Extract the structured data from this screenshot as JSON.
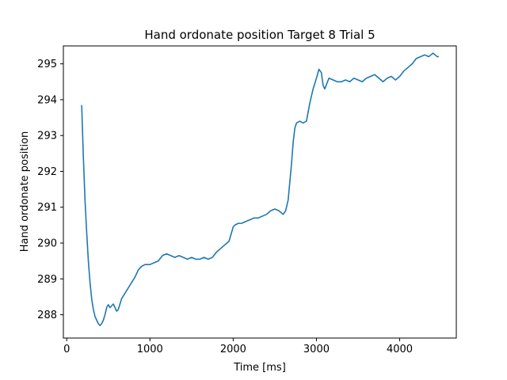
{
  "chart_data": {
    "type": "line",
    "title": "Hand ordonate position Target 8 Trial 5",
    "xlabel": "Time [ms]",
    "ylabel": "Hand ordonate position",
    "xlim": [
      -40,
      4680
    ],
    "ylim": [
      287.35,
      295.5
    ],
    "xticks": [
      0,
      1000,
      2000,
      3000,
      4000
    ],
    "yticks": [
      288,
      289,
      290,
      291,
      292,
      293,
      294,
      295
    ],
    "xtick_labels": [
      "0",
      "1000",
      "2000",
      "3000",
      "4000"
    ],
    "ytick_labels": [
      "288",
      "289",
      "290",
      "291",
      "292",
      "293",
      "294",
      "295"
    ],
    "grid": false,
    "legend": "none",
    "series": [
      {
        "color": "#1f77b4",
        "x": [
          180,
          200,
          220,
          240,
          260,
          280,
          300,
          320,
          340,
          360,
          380,
          400,
          420,
          440,
          460,
          480,
          500,
          520,
          540,
          560,
          580,
          600,
          620,
          640,
          660,
          700,
          740,
          780,
          820,
          860,
          900,
          940,
          1000,
          1050,
          1100,
          1150,
          1200,
          1250,
          1300,
          1350,
          1400,
          1450,
          1500,
          1550,
          1600,
          1650,
          1700,
          1750,
          1800,
          1850,
          1900,
          1950,
          2000,
          2020,
          2060,
          2100,
          2150,
          2200,
          2250,
          2300,
          2350,
          2400,
          2450,
          2500,
          2550,
          2600,
          2630,
          2660,
          2680,
          2700,
          2720,
          2740,
          2760,
          2800,
          2840,
          2880,
          2920,
          2960,
          3000,
          3030,
          3060,
          3080,
          3100,
          3150,
          3200,
          3250,
          3300,
          3350,
          3400,
          3450,
          3500,
          3550,
          3600,
          3650,
          3700,
          3750,
          3800,
          3850,
          3900,
          3950,
          4000,
          4050,
          4100,
          4150,
          4200,
          4250,
          4300,
          4350,
          4400,
          4450,
          4470
        ],
        "y": [
          293.85,
          292.4,
          291.2,
          290.3,
          289.5,
          288.9,
          288.45,
          288.15,
          287.95,
          287.85,
          287.75,
          287.7,
          287.75,
          287.85,
          288.0,
          288.2,
          288.28,
          288.2,
          288.25,
          288.3,
          288.2,
          288.1,
          288.15,
          288.3,
          288.45,
          288.6,
          288.75,
          288.9,
          289.05,
          289.25,
          289.35,
          289.4,
          289.4,
          289.45,
          289.5,
          289.65,
          289.7,
          289.65,
          289.6,
          289.65,
          289.6,
          289.55,
          289.6,
          289.55,
          289.55,
          289.6,
          289.55,
          289.6,
          289.75,
          289.85,
          289.95,
          290.05,
          290.45,
          290.5,
          290.55,
          290.55,
          290.6,
          290.65,
          290.7,
          290.7,
          290.75,
          290.8,
          290.9,
          290.95,
          290.9,
          290.8,
          290.9,
          291.2,
          291.7,
          292.2,
          292.8,
          293.2,
          293.35,
          293.4,
          293.35,
          293.4,
          293.9,
          294.3,
          294.6,
          294.85,
          294.75,
          294.4,
          294.3,
          294.6,
          294.55,
          294.5,
          294.5,
          294.55,
          294.5,
          294.6,
          294.55,
          294.5,
          294.6,
          294.65,
          294.7,
          294.6,
          294.5,
          294.6,
          294.65,
          294.55,
          294.65,
          294.8,
          294.9,
          295.0,
          295.15,
          295.2,
          295.25,
          295.2,
          295.3,
          295.2,
          295.2
        ]
      }
    ]
  }
}
